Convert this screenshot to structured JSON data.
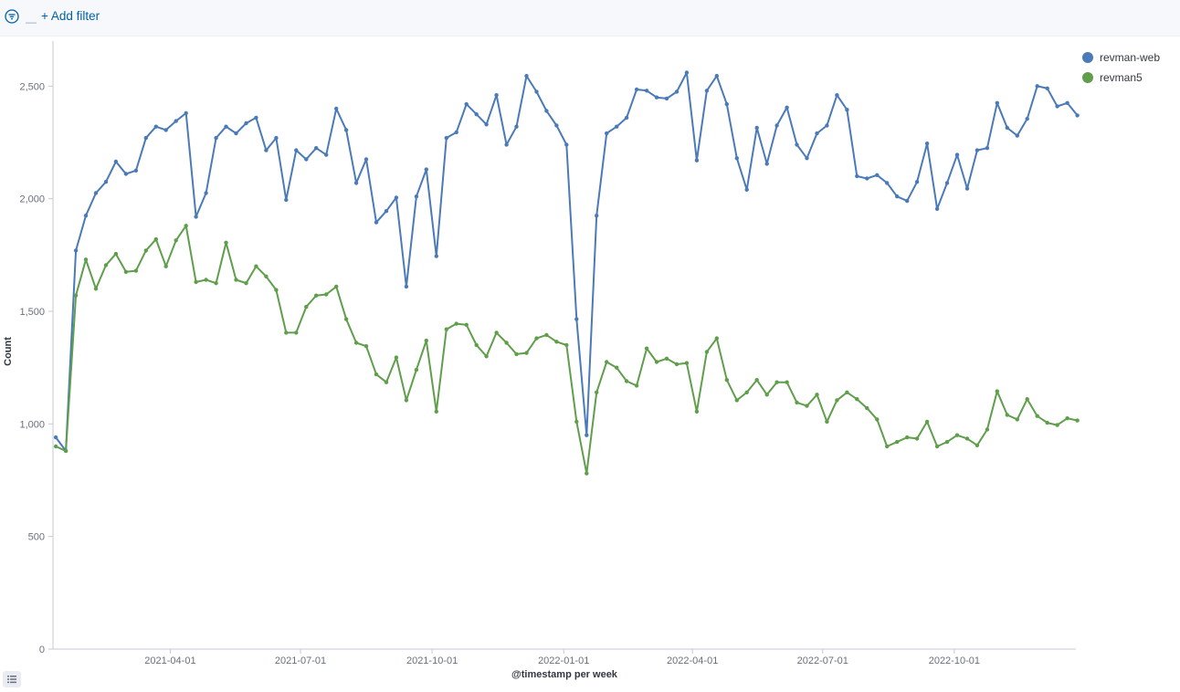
{
  "filter_bar": {
    "add_filter_label": "+ Add filter",
    "separator": "—",
    "icon": "filter-icon"
  },
  "legend": {
    "placement": "top-right",
    "items": [
      {
        "label": "revman-web",
        "color": "#4a7ab8"
      },
      {
        "label": "revman5",
        "color": "#5f9e4b"
      }
    ]
  },
  "chart_data": {
    "type": "line",
    "xlabel": "@timestamp per week",
    "ylabel": "Count",
    "ylim": [
      0,
      2700
    ],
    "yticks": [
      0,
      500,
      1000,
      1500,
      2000,
      2500
    ],
    "ytick_labels": [
      "0",
      "500",
      "1,000",
      "1,500",
      "2,000",
      "2,500"
    ],
    "xlim": [
      "2021-01-09",
      "2022-12-25"
    ],
    "xticks": [
      "2021-04-01",
      "2021-07-01",
      "2021-10-01",
      "2022-01-01",
      "2022-04-01",
      "2022-07-01",
      "2022-10-01"
    ],
    "x_start": "2021-01-11",
    "x_interval": "week",
    "grid": false,
    "series": [
      {
        "name": "revman-web",
        "color": "#4a7ab8",
        "values": [
          940,
          880,
          1770,
          1925,
          2025,
          2075,
          2165,
          2110,
          2125,
          2270,
          2320,
          2305,
          2345,
          2380,
          1920,
          2025,
          2270,
          2320,
          2290,
          2335,
          2360,
          2215,
          2270,
          1995,
          2215,
          2175,
          2225,
          2195,
          2400,
          2305,
          2070,
          2175,
          1895,
          1945,
          2005,
          1610,
          2010,
          2130,
          1745,
          2270,
          2295,
          2420,
          2375,
          2330,
          2460,
          2240,
          2320,
          2545,
          2475,
          2390,
          2325,
          2240,
          1465,
          950,
          1925,
          2290,
          2320,
          2360,
          2485,
          2480,
          2450,
          2445,
          2475,
          2560,
          2170,
          2480,
          2545,
          2420,
          2180,
          2040,
          2315,
          2155,
          2325,
          2405,
          2240,
          2180,
          2290,
          2325,
          2460,
          2395,
          2100,
          2090,
          2105,
          2070,
          2010,
          1990,
          2075,
          2245,
          1955,
          2070,
          2195,
          2045,
          2215,
          2225,
          2425,
          2315,
          2280,
          2355,
          2500,
          2490,
          2410,
          2425,
          2370
        ]
      },
      {
        "name": "revman5",
        "color": "#5f9e4b",
        "values": [
          900,
          880,
          1570,
          1730,
          1600,
          1705,
          1755,
          1675,
          1680,
          1770,
          1820,
          1700,
          1815,
          1880,
          1630,
          1640,
          1625,
          1805,
          1640,
          1625,
          1700,
          1655,
          1595,
          1405,
          1405,
          1520,
          1570,
          1575,
          1610,
          1465,
          1360,
          1345,
          1220,
          1185,
          1295,
          1105,
          1240,
          1370,
          1055,
          1420,
          1445,
          1440,
          1350,
          1300,
          1405,
          1360,
          1310,
          1315,
          1380,
          1395,
          1365,
          1350,
          1010,
          780,
          1140,
          1275,
          1250,
          1190,
          1170,
          1335,
          1275,
          1290,
          1265,
          1270,
          1055,
          1320,
          1380,
          1195,
          1105,
          1140,
          1195,
          1130,
          1185,
          1185,
          1095,
          1080,
          1130,
          1010,
          1105,
          1140,
          1110,
          1070,
          1020,
          900,
          920,
          940,
          935,
          1010,
          900,
          920,
          950,
          935,
          905,
          975,
          1145,
          1040,
          1020,
          1110,
          1035,
          1005,
          995,
          1025,
          1015
        ]
      }
    ]
  }
}
